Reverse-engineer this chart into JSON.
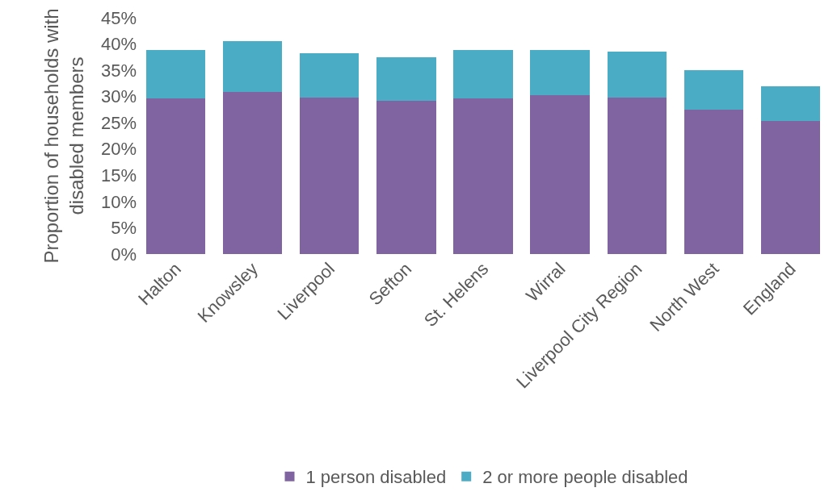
{
  "chart_data": {
    "type": "bar",
    "stacked": true,
    "ylabel": "Proportion of households with disabled members",
    "categories": [
      "Halton",
      "Knowsley",
      "Liverpool",
      "Sefton",
      "St. Helens",
      "Wirral",
      "Liverpool City Region",
      "North West",
      "England"
    ],
    "series": [
      {
        "name": "1 person disabled",
        "color": "#8064a2",
        "values": [
          29.7,
          30.9,
          29.8,
          29.2,
          29.7,
          30.2,
          29.8,
          27.5,
          25.3
        ]
      },
      {
        "name": "2 or more people disabled",
        "color": "#4bacc6",
        "values": [
          9.2,
          9.6,
          8.5,
          8.3,
          9.1,
          8.7,
          8.8,
          7.5,
          6.7
        ]
      }
    ],
    "ylim": [
      0,
      45
    ],
    "yticks": [
      {
        "value": 0,
        "label": "0%"
      },
      {
        "value": 5,
        "label": "5%"
      },
      {
        "value": 10,
        "label": "10%"
      },
      {
        "value": 15,
        "label": "15%"
      },
      {
        "value": 20,
        "label": "20%"
      },
      {
        "value": 25,
        "label": "25%"
      },
      {
        "value": 30,
        "label": "30%"
      },
      {
        "value": 35,
        "label": "35%"
      },
      {
        "value": 40,
        "label": "40%"
      },
      {
        "value": 45,
        "label": "45%"
      }
    ],
    "grid": false,
    "legend": "bottom"
  }
}
